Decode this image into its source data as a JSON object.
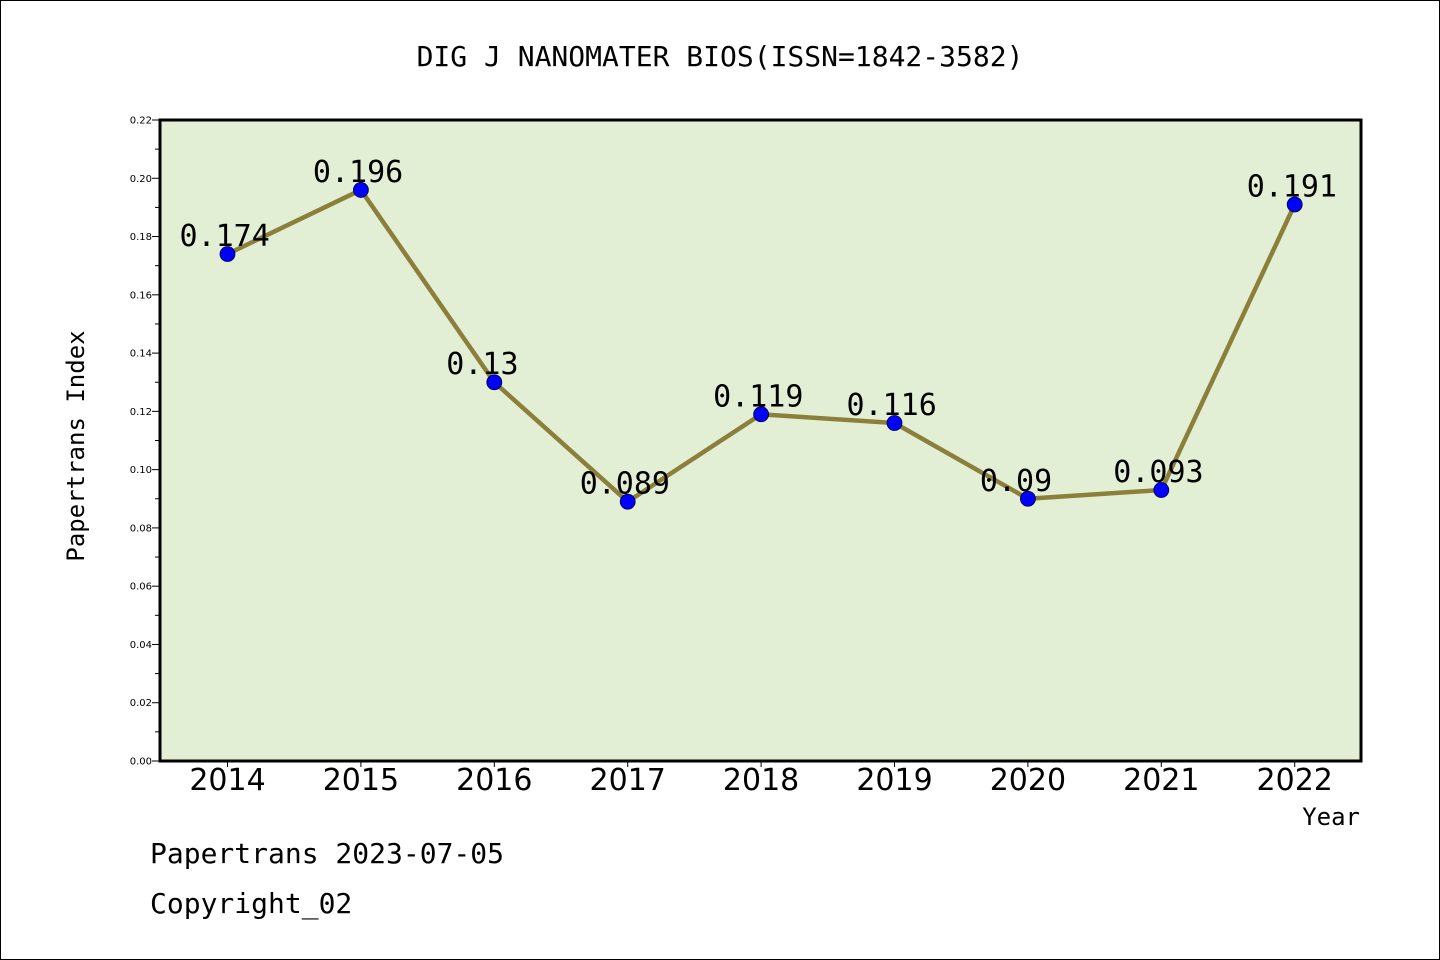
{
  "chart_data": {
    "type": "line",
    "title": "DIG J NANOMATER BIOS(ISSN=1842-3582)",
    "xlabel": "Year",
    "ylabel": "Papertrans Index",
    "categories": [
      "2014",
      "2015",
      "2016",
      "2017",
      "2018",
      "2019",
      "2020",
      "2021",
      "2022"
    ],
    "values": [
      0.174,
      0.196,
      0.13,
      0.089,
      0.119,
      0.116,
      0.09,
      0.093,
      0.191
    ],
    "data_labels": [
      "0.174",
      "0.196",
      "0.13",
      "0.089",
      "0.119",
      "0.116",
      "0.09",
      "0.093",
      "0.191"
    ],
    "ylim": [
      0,
      0.22
    ],
    "yticks": [
      "0.00",
      "0.02",
      "0.04",
      "0.06",
      "0.08",
      "0.10",
      "0.12",
      "0.14",
      "0.16",
      "0.18",
      "0.20",
      "0.22"
    ],
    "grid": false,
    "colors": {
      "plot_background": "#e2efd5",
      "line": "#8b7f3a",
      "marker": "#0000ff"
    }
  },
  "footer": {
    "line1": "Papertrans 2023-07-05",
    "line2": "Copyright_02"
  }
}
